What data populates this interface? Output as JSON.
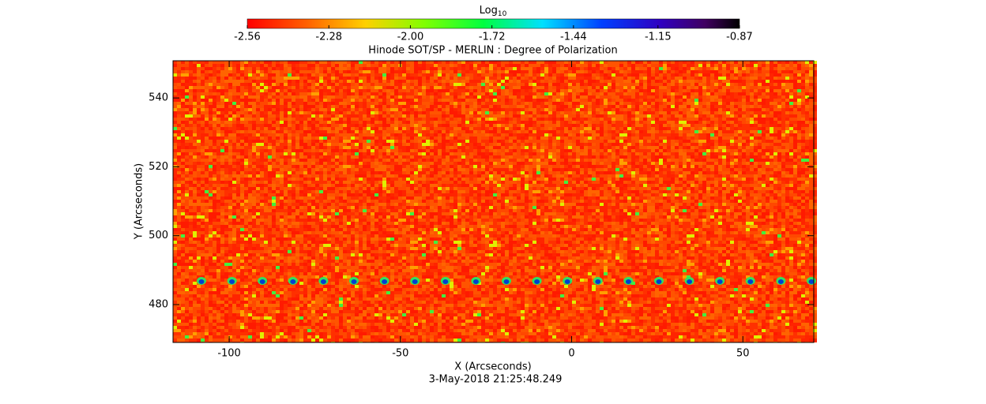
{
  "chart_data": {
    "type": "image",
    "title": "Hinode SOT/SP - MERLIN : Degree of Polarization",
    "x_label": "X (Arcseconds)",
    "y_label": "Y (Arcseconds)",
    "footer": "3-May-2018 21:25:48.249",
    "colorbar_label": "Log",
    "colorbar_label_sub": "10",
    "clim": [
      -2.56,
      -0.87
    ],
    "cticks": [
      -2.56,
      -2.28,
      {
        "value": -2,
        "label": "-2.00"
      },
      -1.72,
      -1.44,
      -1.15,
      -0.87
    ],
    "xlim": [
      -116.4,
      70.7
    ],
    "xticks": [
      -100,
      -50,
      0,
      50
    ],
    "ylim": [
      469,
      550.8
    ],
    "yticks": [
      480,
      500,
      520,
      540
    ]
  }
}
